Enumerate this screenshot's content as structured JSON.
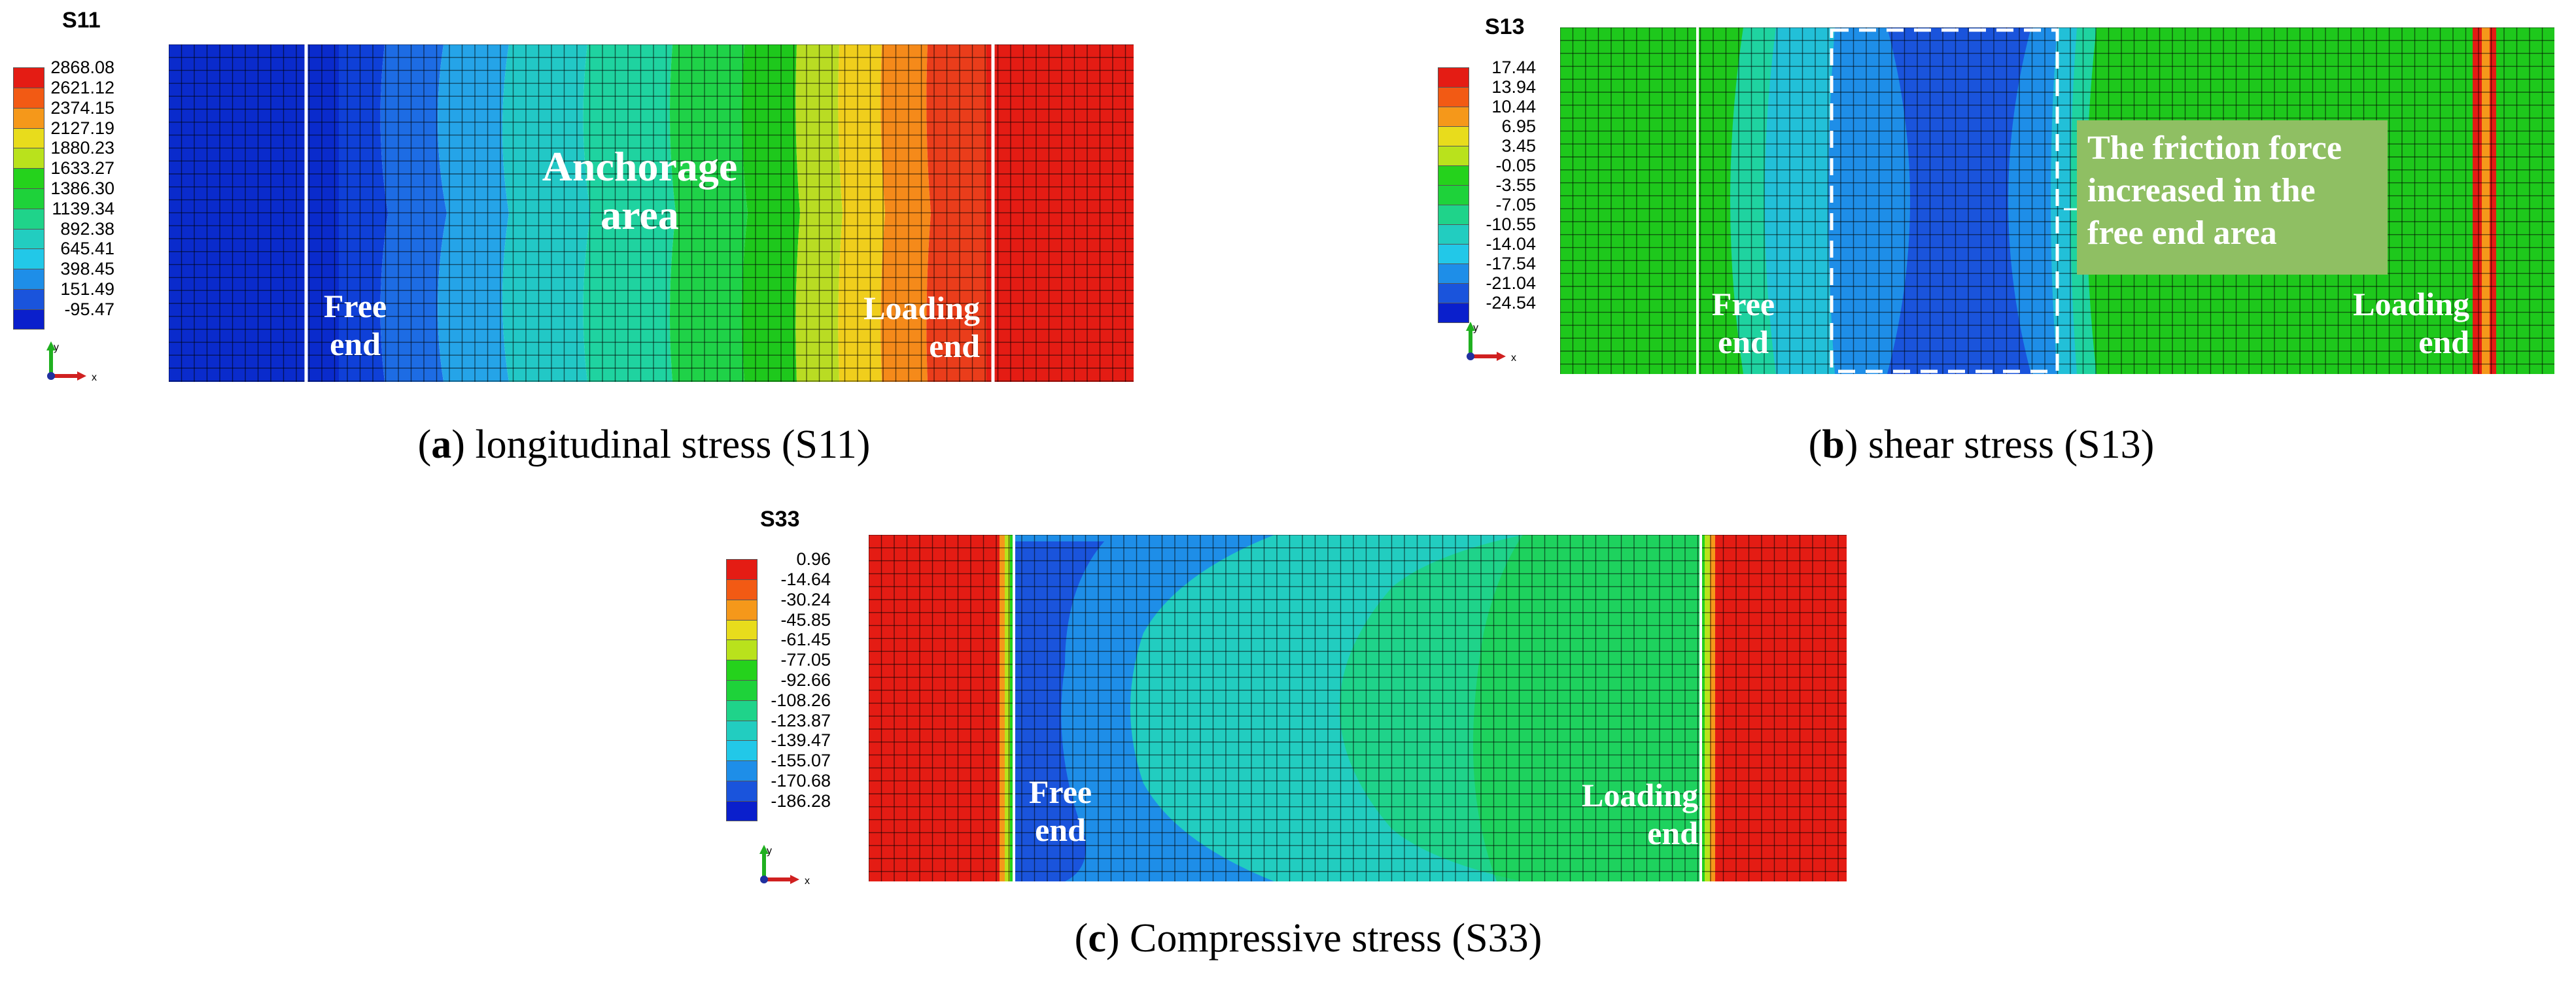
{
  "panels": {
    "a": {
      "legend_title": "S11",
      "legend_values": [
        "2868.08",
        "2621.12",
        "2374.15",
        "2127.19",
        "1880.23",
        "1633.27",
        "1386.30",
        "1139.34",
        "892.38",
        "645.41",
        "398.45",
        "151.49",
        "-95.47"
      ],
      "labels": {
        "anchorage_1": "Anchorage",
        "anchorage_2": "area",
        "free_1": "Free",
        "free_2": "end",
        "loading_1": "Loading",
        "loading_2": "end"
      },
      "caption_letter": "a",
      "caption_text": " longitudinal stress (S11)",
      "field_colors": [
        "#0a2bcc",
        "#1d5ee0",
        "#2a8fe8",
        "#22c0c8",
        "#1fd3a0",
        "#1fd23a",
        "#1ec81c",
        "#b9dc23",
        "#f0ce1c",
        "#f58a1a",
        "#ea3d1b",
        "#e41c14"
      ]
    },
    "b": {
      "legend_title": "S13",
      "legend_values": [
        "17.44",
        "13.94",
        "10.44",
        "6.95",
        "3.45",
        "-0.05",
        "-3.55",
        "-7.05",
        "-10.55",
        "-14.04",
        "-17.54",
        "-21.04",
        "-24.54"
      ],
      "labels": {
        "free_1": "Free",
        "free_2": "end",
        "loading_1": "Loading",
        "loading_2": "end"
      },
      "callout": [
        "The friction force",
        "increased in the",
        "free end area"
      ],
      "caption_letter": "b",
      "caption_text": " shear stress (S13)"
    },
    "c": {
      "legend_title": "S33",
      "legend_values": [
        "0.96",
        "-14.64",
        "-30.24",
        "-45.85",
        "-61.45",
        "-77.05",
        "-92.66",
        "-108.26",
        "-123.87",
        "-139.47",
        "-155.07",
        "-170.68",
        "-186.28"
      ],
      "labels": {
        "free_1": "Free",
        "free_2": "end",
        "loading_1": "Loading",
        "loading_2": "end"
      },
      "caption_letter": "c",
      "caption_text": " Compressive stress (S33)"
    }
  },
  "legend_colors": [
    "#e41c14",
    "#f25a14",
    "#f5981a",
    "#e8dc1c",
    "#b9e21c",
    "#25d21c",
    "#1ed23a",
    "#1fd38a",
    "#22cdc0",
    "#22c8e8",
    "#1e8ee8",
    "#1a54dc",
    "#0a1fcc"
  ],
  "axis_triad": {
    "x": "x",
    "y": "y"
  }
}
